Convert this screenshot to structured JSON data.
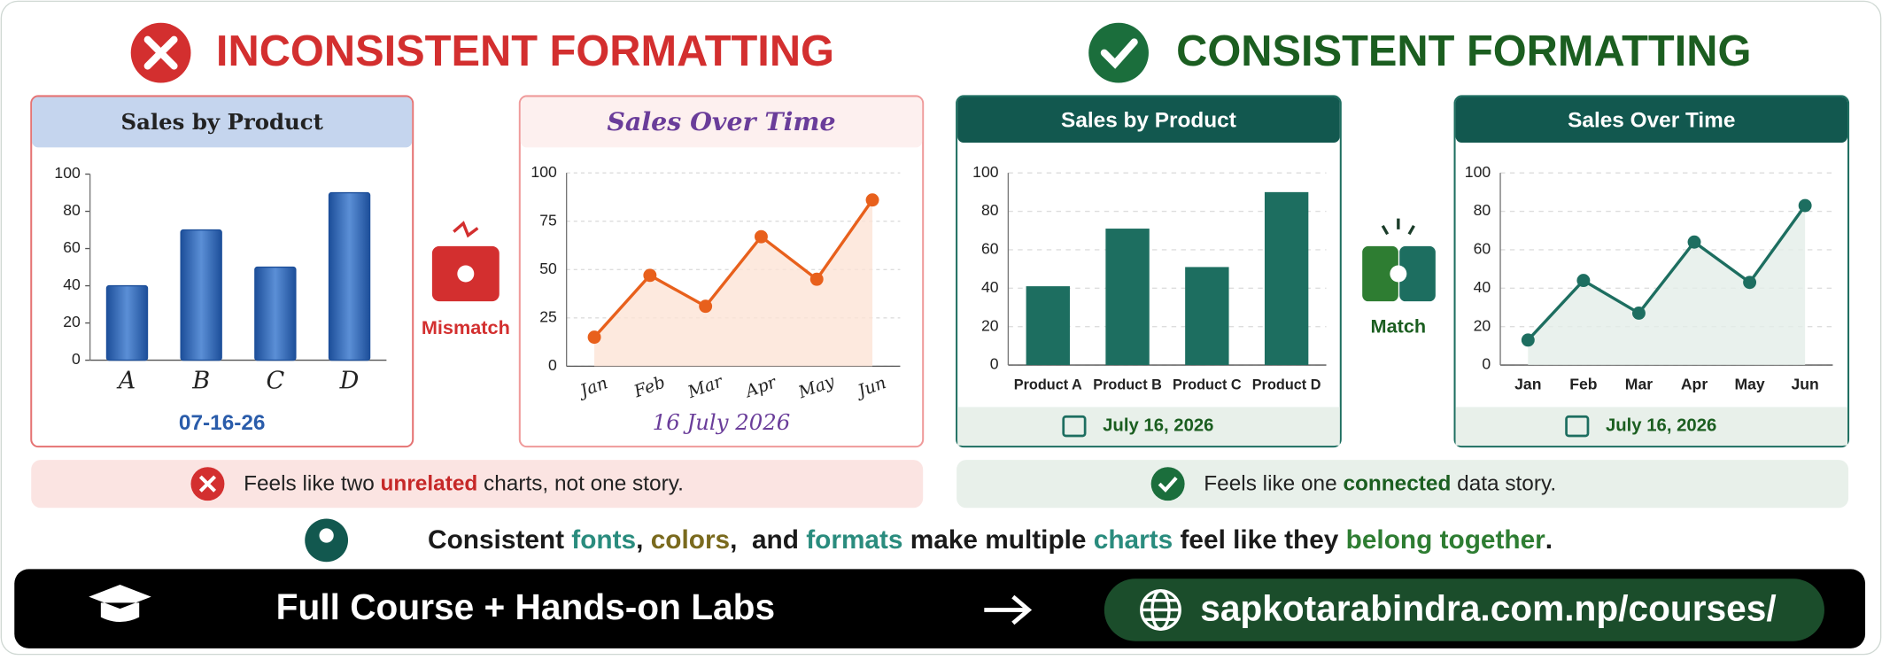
{
  "left_heading": "INCONSISTENT FORMATTING",
  "right_heading": "CONSISTENT FORMATTING",
  "mismatch": "Mismatch",
  "match": "Match",
  "chart_data": [
    {
      "type": "bar",
      "title": "Sales by Product",
      "categories": [
        "A",
        "B",
        "C",
        "D"
      ],
      "values": [
        40,
        70,
        50,
        90
      ],
      "color": "#2a5caa",
      "ylim": [
        0,
        100
      ],
      "yticks": [
        0,
        20,
        40,
        60,
        80,
        100
      ],
      "grid": false,
      "date": "07-16-26"
    },
    {
      "type": "line",
      "title": "Sales Over Time",
      "categories": [
        "Jan",
        "Feb",
        "Mar",
        "Apr",
        "May",
        "Jun"
      ],
      "values": [
        15,
        47,
        31,
        67,
        45,
        86
      ],
      "color": "#e8601c",
      "ylim": [
        0,
        100
      ],
      "yticks": [
        0,
        25,
        50,
        75,
        100
      ],
      "grid": true,
      "date": "16 July 2026"
    },
    {
      "type": "bar",
      "title": "Sales by Product",
      "categories": [
        "Product A",
        "Product B",
        "Product C",
        "Product D"
      ],
      "values": [
        41,
        71,
        51,
        90
      ],
      "color": "#1d6e60",
      "ylim": [
        0,
        100
      ],
      "yticks": [
        0,
        20,
        40,
        60,
        80,
        100
      ],
      "grid": true,
      "date": "July 16, 2026"
    },
    {
      "type": "line",
      "title": "Sales Over Time",
      "categories": [
        "Jan",
        "Feb",
        "Mar",
        "Apr",
        "May",
        "Jun"
      ],
      "values": [
        13,
        44,
        27,
        64,
        43,
        83
      ],
      "color": "#1d6e60",
      "ylim": [
        0,
        100
      ],
      "yticks": [
        0,
        20,
        40,
        60,
        80,
        100
      ],
      "grid": true,
      "date": "July 16, 2026"
    }
  ],
  "left_note": [
    {
      "text": "Feels like two ",
      "color": "#222222"
    },
    {
      "text": "unrelated",
      "color": "#c62828"
    },
    {
      "text": " charts, not one story.",
      "color": "#222222"
    }
  ],
  "right_note": [
    {
      "text": "Feels like one ",
      "color": "#222222"
    },
    {
      "text": "connected",
      "color": "#1b5e20"
    },
    {
      "text": " data story.",
      "color": "#222222"
    }
  ],
  "tip": [
    {
      "text": "Consistent ",
      "color": "#1a1a1a"
    },
    {
      "text": "fonts",
      "color": "#2a8c7e"
    },
    {
      "text": ", ",
      "color": "#1a1a1a"
    },
    {
      "text": "colors",
      "color": "#7a6a1e"
    },
    {
      "text": ",  and ",
      "color": "#1a1a1a"
    },
    {
      "text": "formats",
      "color": "#2a8c7e"
    },
    {
      "text": " make multiple ",
      "color": "#1a1a1a"
    },
    {
      "text": "charts",
      "color": "#2a8c7e"
    },
    {
      "text": " feel like they ",
      "color": "#1a1a1a"
    },
    {
      "text": "belong together",
      "color": "#2e7d32"
    },
    {
      "text": ".",
      "color": "#1a1a1a"
    }
  ],
  "footer": {
    "course": "Full Course + Hands-on Labs",
    "url": "sapkotarabindra.com.np/courses/"
  }
}
